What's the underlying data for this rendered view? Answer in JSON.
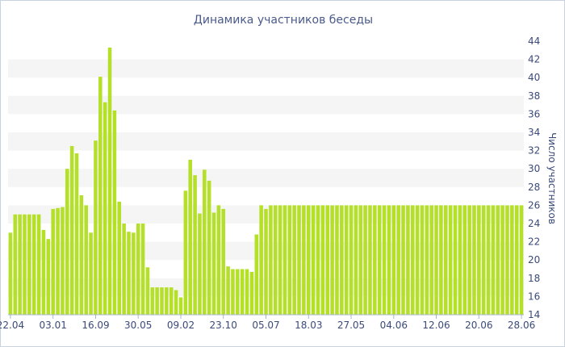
{
  "chart_data": {
    "type": "bar",
    "title": "Динамика участников беседы",
    "ylabel": "Число участников",
    "ylim": [
      14,
      44
    ],
    "yticks": [
      14,
      16,
      18,
      20,
      22,
      24,
      26,
      28,
      30,
      32,
      34,
      36,
      38,
      40,
      42,
      44
    ],
    "grid": "horizontal bands",
    "y_axis_side": "right",
    "x_tick_labels": [
      "22.04",
      "03.01",
      "16.09",
      "30.05",
      "09.02",
      "23.10",
      "05.07",
      "18.03",
      "27.05",
      "04.06",
      "12.06",
      "20.06",
      "28.06"
    ],
    "x_tick_positions": [
      0,
      9,
      18,
      27,
      36,
      45,
      54,
      63,
      72,
      81,
      90,
      99,
      108
    ],
    "values": [
      23,
      25,
      25,
      25,
      25,
      25,
      25,
      23.3,
      22.3,
      25.6,
      25.7,
      25.8,
      30,
      32.5,
      31.7,
      27.1,
      26,
      23,
      33.1,
      40.1,
      37.3,
      43.3,
      36.4,
      26.4,
      24,
      23.1,
      23,
      24,
      24,
      19.2,
      17,
      17,
      17,
      17,
      17,
      16.7,
      15.9,
      27.6,
      31,
      29.3,
      25.1,
      29.9,
      28.7,
      25.2,
      26,
      25.6,
      19.3,
      19,
      19,
      19,
      19,
      18.7,
      22.8,
      26,
      25.6,
      26,
      26,
      26,
      26,
      26,
      26,
      26,
      26,
      26,
      26,
      26,
      26,
      26,
      26,
      26,
      26,
      26,
      26,
      26,
      26,
      26,
      26,
      26,
      26,
      26,
      26,
      26,
      26,
      26,
      26,
      26,
      26,
      26,
      26,
      26,
      26,
      26,
      26,
      26,
      26,
      26,
      26,
      26,
      26,
      26,
      26,
      26,
      26,
      26,
      26,
      26,
      26,
      26,
      26
    ],
    "colors": {
      "bar": "#b5e02a",
      "bar_edge": "#9ccc1b",
      "band": "#f5f5f5",
      "text": "#3a4a7a"
    }
  }
}
